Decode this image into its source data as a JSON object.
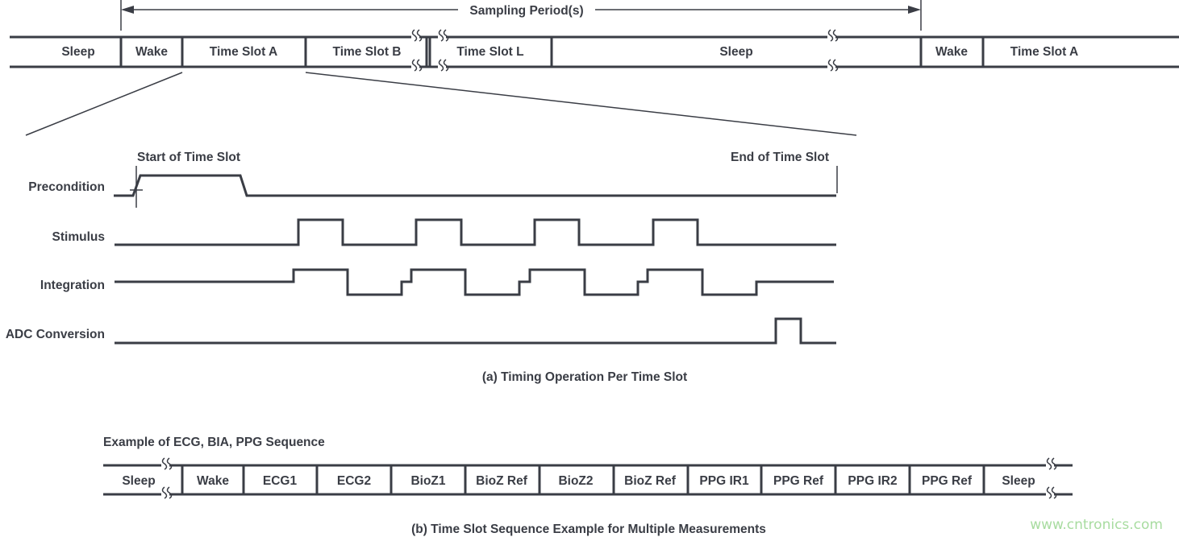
{
  "colors": {
    "ink": "#3a3d45",
    "watermark": "#a8dca0",
    "background": "#ffffff"
  },
  "top_sequence": {
    "span_label": "Sampling Period(s)",
    "cells": [
      "Sleep",
      "Wake",
      "Time Slot A",
      "Time Slot B",
      "Time Slot L",
      "Sleep",
      "Wake",
      "Time Slot A"
    ]
  },
  "timing": {
    "start_label": "Start of Time Slot",
    "end_label": "End of Time Slot",
    "signals": [
      "Precondition",
      "Stimulus",
      "Integration",
      "ADC Conversion"
    ],
    "caption": "(a) Timing Operation Per Time Slot"
  },
  "bottom_sequence": {
    "title": "Example of ECG, BIA, PPG Sequence",
    "cells": [
      "Sleep",
      "Wake",
      "ECG1",
      "ECG2",
      "BioZ1",
      "BioZ Ref",
      "BioZ2",
      "BioZ Ref",
      "PPG IR1",
      "PPG Ref",
      "PPG IR2",
      "PPG Ref",
      "Sleep"
    ],
    "caption": "(b) Time Slot Sequence Example for Multiple Measurements"
  },
  "watermark": "www.cntronics.com"
}
